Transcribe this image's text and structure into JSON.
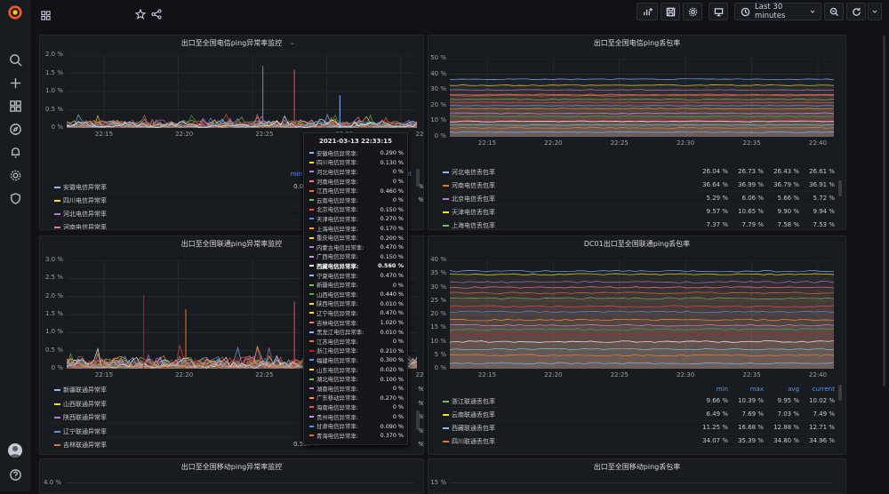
{
  "timepicker": {
    "label": "Last 30 minutes"
  },
  "panels": {
    "tl": {
      "title": "出口至全国电信ping异常率监控",
      "yticks": [
        "2.0 %",
        "1.5 %",
        "1.0 %",
        "0.5 %",
        "0 %"
      ],
      "xticks": [
        "22:15",
        "22:20",
        "22:25",
        "22:30",
        "22:35"
      ],
      "legend_header": "min",
      "legend": [
        {
          "name": "安徽电信异常率",
          "color": "#8ab8ff",
          "min": "0.030 %"
        },
        {
          "name": "四川电信异常率",
          "color": "#fade2a",
          "min": "0 %"
        },
        {
          "name": "河北电信异常率",
          "color": "#b877d9",
          "min": "0 %"
        },
        {
          "name": "河南电信异常率",
          "color": "#ff7383",
          "min": ""
        }
      ],
      "extra_header": "nt",
      "extra": [
        "%",
        "%"
      ]
    },
    "tr": {
      "title": "出口至全国电信ping丢包率",
      "yticks": [
        "50 %",
        "40 %",
        "30 %",
        "20 %",
        "10 %",
        "0 %"
      ],
      "xticks": [
        "22:15",
        "22:20",
        "22:25",
        "22:30",
        "22:35",
        "22:40"
      ],
      "legend": [
        {
          "name": "河北电信丢包率",
          "color": "#8ab8ff",
          "min": "26.04 %",
          "max": "26.73 %",
          "avg": "26.43 %",
          "current": "26.61 %"
        },
        {
          "name": "河南电信丢包率",
          "color": "#e0752d",
          "min": "36.64 %",
          "max": "36.99 %",
          "avg": "36.79 %",
          "current": "36.91 %"
        },
        {
          "name": "北京电信丢包率",
          "color": "#b877d9",
          "min": "5.29 %",
          "max": "6.06 %",
          "avg": "5.66 %",
          "current": "5.72 %"
        },
        {
          "name": "天津电信丢包率",
          "color": "#fade2a",
          "min": "9.57 %",
          "max": "10.65 %",
          "avg": "9.90 %",
          "current": "9.94 %"
        },
        {
          "name": "上海电信丢包率",
          "color": "#73bf69",
          "min": "7.37 %",
          "max": "7.79 %",
          "avg": "7.58 %",
          "current": "7.53 %"
        }
      ]
    },
    "ml": {
      "title": "出口至全国联通ping异常率监控",
      "yticks": [
        "3.0 %",
        "2.5 %",
        "2.0 %",
        "1.5 %",
        "1.0 %",
        "0.5 %",
        "0 %"
      ],
      "xticks": [
        "22:15",
        "22:20",
        "22:25",
        "22:30",
        "22:35"
      ],
      "legend": [
        {
          "name": "新疆联通异常率",
          "color": "#8ab8ff",
          "min": "0 %",
          "extra": "%"
        },
        {
          "name": "山西联通异常率",
          "color": "#fade2a",
          "min": "0 %",
          "extra": "%"
        },
        {
          "name": "陕西联通异常率",
          "color": "#b877d9",
          "min": "0 %",
          "extra": "%"
        },
        {
          "name": "辽宁联通异常率",
          "color": "#5794f2",
          "min": "0 %",
          "extra": "%"
        },
        {
          "name": "吉林联通异常率",
          "color": "#e0752d",
          "min": "0.590 %",
          "extra": "%"
        }
      ]
    },
    "mr": {
      "title": "DC01出口至全国联通ping丢包率",
      "yticks": [
        "40 %",
        "35 %",
        "30 %",
        "25 %",
        "20 %",
        "15 %",
        "10 %",
        "5 %",
        "0 %"
      ],
      "xticks": [
        "22:15",
        "22:20",
        "22:25",
        "22:30",
        "22:35",
        "22:40"
      ],
      "legend_headers": {
        "min": "min",
        "max": "max",
        "avg": "avg",
        "current": "current"
      },
      "legend": [
        {
          "name": "浙江联通丢包率",
          "color": "#73bf69",
          "min": "9.66 %",
          "max": "10.39 %",
          "avg": "9.95 %",
          "current": "10.02 %"
        },
        {
          "name": "云南联通丢包率",
          "color": "#fade2a",
          "min": "6.49 %",
          "max": "7.69 %",
          "avg": "7.03 %",
          "current": "7.49 %"
        },
        {
          "name": "西藏联通丢包率",
          "color": "#8ab8ff",
          "min": "11.25 %",
          "max": "16.68 %",
          "avg": "12.88 %",
          "current": "12.71 %"
        },
        {
          "name": "四川联通丢包率",
          "color": "#e0752d",
          "min": "34.07 %",
          "max": "35.39 %",
          "avg": "34.80 %",
          "current": "34.96 %"
        }
      ]
    },
    "bl": {
      "title": "出口至全国移动ping异常率监控",
      "yticks": [
        "4.0 %"
      ]
    },
    "br": {
      "title": "出口至全国移动ping丢包率",
      "yticks": [
        "15 %"
      ]
    }
  },
  "tooltip": {
    "time": "2021-03-13 22:33:15",
    "rows": [
      {
        "name": "安徽电信异常率:",
        "value": "0.290 %",
        "color": "#8ab8ff"
      },
      {
        "name": "四川电信异常率:",
        "value": "0.130 %",
        "color": "#fade2a"
      },
      {
        "name": "河北电信异常率:",
        "value": "0 %",
        "color": "#b877d9"
      },
      {
        "name": "河南电信异常率:",
        "value": "0 %",
        "color": "#ff7383"
      },
      {
        "name": "江西电信异常率:",
        "value": "0.460 %",
        "color": "#e0752d"
      },
      {
        "name": "云南电信异常率:",
        "value": "0 %",
        "color": "#73bf69"
      },
      {
        "name": "北京电信异常率:",
        "value": "0.150 %",
        "color": "#f2495c"
      },
      {
        "name": "天津电信异常率:",
        "value": "0.270 %",
        "color": "#5794f2"
      },
      {
        "name": "上海电信异常率:",
        "value": "0.170 %",
        "color": "#ff9830"
      },
      {
        "name": "重庆电信异常率:",
        "value": "0.200 %",
        "color": "#fade2a"
      },
      {
        "name": "内蒙古电信异常率:",
        "value": "0.470 %",
        "color": "#b877d9"
      },
      {
        "name": "广西电信异常率:",
        "value": "0.150 %",
        "color": "#ca95e5"
      },
      {
        "name": "西藏电信异常率:",
        "value": "0.560 %",
        "color": "#ffffff",
        "bold": true
      },
      {
        "name": "宁夏电信异常率:",
        "value": "0.470 %",
        "color": "#8ab8ff"
      },
      {
        "name": "新疆电信异常率:",
        "value": "0 %",
        "color": "#73bf69"
      },
      {
        "name": "山西电信异常率:",
        "value": "0.440 %",
        "color": "#56a64b"
      },
      {
        "name": "陕西电信异常率:",
        "value": "0.010 %",
        "color": "#fade2a"
      },
      {
        "name": "辽宁电信异常率:",
        "value": "0.470 %",
        "color": "#fade2a"
      },
      {
        "name": "吉林电信异常率:",
        "value": "1.020 %",
        "color": "#ff7383"
      },
      {
        "name": "黑龙江电信异常率:",
        "value": "0.010 %",
        "color": "#8ab8ff"
      },
      {
        "name": "江苏电信异常率:",
        "value": "0 %",
        "color": "#e0752d"
      },
      {
        "name": "浙江电信异常率:",
        "value": "0.210 %",
        "color": "#c4162a"
      },
      {
        "name": "福建电信异常率:",
        "value": "0.300 %",
        "color": "#5794f2"
      },
      {
        "name": "山东电信异常率:",
        "value": "0.020 %",
        "color": "#fade2a"
      },
      {
        "name": "湖北电信异常率:",
        "value": "0.100 %",
        "color": "#73bf69"
      },
      {
        "name": "湖南电信异常率:",
        "value": "0 %",
        "color": "#b877d9"
      },
      {
        "name": "广东移动异常率:",
        "value": "0.270 %",
        "color": "#ff9830"
      },
      {
        "name": "海南电信异常率:",
        "value": "0 %",
        "color": "#f2495c"
      },
      {
        "name": "贵州电信异常率:",
        "value": "0 %",
        "color": "#ca95e5"
      },
      {
        "name": "甘肃电信异常率:",
        "value": "0.090 %",
        "color": "#5794f2"
      },
      {
        "name": "青海电信异常率:",
        "value": "0.370 %",
        "color": "#e0752d"
      }
    ]
  },
  "colors": {
    "bg": "#111217",
    "panel": "#181b1f",
    "grid": "#2a2c31"
  }
}
